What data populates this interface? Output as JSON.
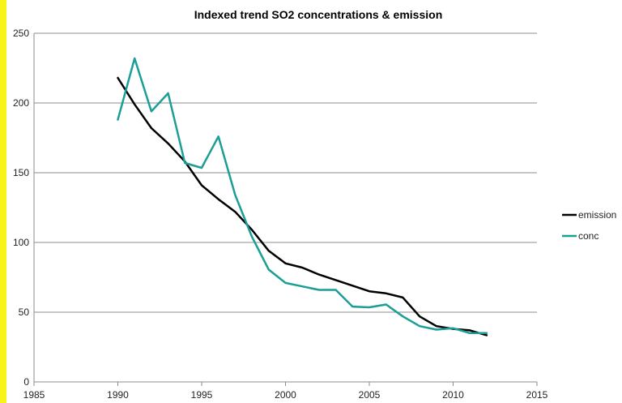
{
  "colors": {
    "background": "#ffffff",
    "left_strip": "#f7f41a",
    "gridline": "#8c8c8c",
    "axis": "#8c8c8c"
  },
  "chart_data": {
    "type": "line",
    "title": "Indexed trend  SO2 concentrations  & emission",
    "xlabel": "",
    "ylabel": "",
    "xlim": [
      1985,
      2015
    ],
    "ylim": [
      0,
      250
    ],
    "x_ticks": [
      1985,
      1990,
      1995,
      2000,
      2005,
      2010,
      2015
    ],
    "y_ticks": [
      0,
      50,
      100,
      150,
      200,
      250
    ],
    "grid": true,
    "legend_position": "right",
    "series": [
      {
        "name": "emission",
        "color": "#000000",
        "x": [
          1990,
          1991,
          1992,
          1993,
          1994,
          1995,
          1996,
          1997,
          1998,
          1999,
          2000,
          2001,
          2002,
          2003,
          2004,
          2005,
          2006,
          2007,
          2008,
          2009,
          2010,
          2011,
          2012
        ],
        "y": [
          218,
          199,
          182,
          171,
          158,
          141,
          131,
          122,
          109,
          94,
          85,
          82,
          77,
          73,
          69,
          65,
          63.5,
          60.5,
          47,
          40,
          38,
          37,
          33.5
        ]
      },
      {
        "name": "conc",
        "color": "#1a9e96",
        "x": [
          1990,
          1991,
          1992,
          1993,
          1994,
          1995,
          1996,
          1997,
          1998,
          1999,
          2000,
          2001,
          2002,
          2003,
          2004,
          2005,
          2006,
          2007,
          2008,
          2009,
          2010,
          2011,
          2012
        ],
        "y": [
          188,
          232,
          194,
          207,
          157,
          153.5,
          176,
          134,
          104,
          80.5,
          71,
          68.5,
          66,
          66,
          54,
          53.5,
          55.5,
          47,
          40,
          37.5,
          38.5,
          35,
          35
        ]
      }
    ]
  }
}
